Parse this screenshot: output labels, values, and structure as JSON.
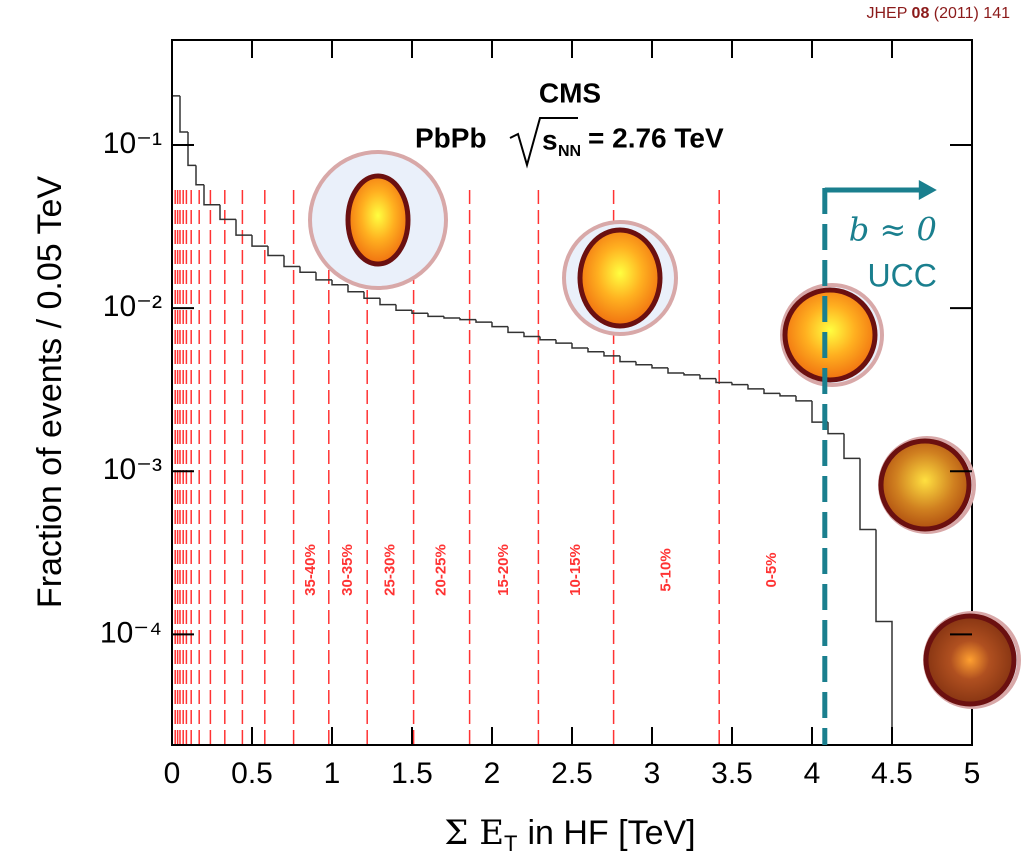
{
  "chart_data": {
    "type": "histogram",
    "citation": {
      "journal": "JHEP",
      "volume": "08",
      "rest": "(2011) 141"
    },
    "title": "CMS",
    "subtitle": {
      "system": "PbPb",
      "symbol": "s",
      "subscript": "NN",
      "rest": "= 2.76 TeV"
    },
    "xlabel": {
      "main": "Σ E",
      "subscript": "T",
      "rest": "in HF [TeV]"
    },
    "ylabel": "Fraction of events / 0.05 TeV",
    "bins": [
      0,
      0.05,
      0.1,
      0.15,
      0.2,
      0.3,
      0.4,
      0.5,
      0.6,
      0.7,
      0.8,
      0.9,
      1.0,
      1.1,
      1.2,
      1.3,
      1.4,
      1.5,
      1.6,
      1.7,
      1.8,
      1.9,
      2.0,
      2.1,
      2.2,
      2.3,
      2.4,
      2.5,
      2.6,
      2.7,
      2.8,
      2.9,
      3.0,
      3.1,
      3.2,
      3.3,
      3.4,
      3.5,
      3.6,
      3.7,
      3.8,
      3.9,
      4.0,
      4.1,
      4.2,
      4.3,
      4.4,
      4.5
    ],
    "counts": [
      0.2,
      0.12,
      0.075,
      0.057,
      0.043,
      0.035,
      0.028,
      0.024,
      0.021,
      0.018,
      0.0166,
      0.0149,
      0.0139,
      0.0126,
      0.0115,
      0.0105,
      0.0097,
      0.0093,
      0.0089,
      0.0087,
      0.0085,
      0.0082,
      0.0077,
      0.0071,
      0.0067,
      0.0064,
      0.0061,
      0.0057,
      0.0054,
      0.0051,
      0.0047,
      0.0045,
      0.0043,
      0.004,
      0.0039,
      0.0037,
      0.0035,
      0.0034,
      0.0032,
      0.003,
      0.0029,
      0.0027,
      0.002,
      0.0017,
      0.0012,
      0.00044,
      0.00012
    ],
    "color": "#333333",
    "xlim": [
      0,
      5
    ],
    "xticks": [
      0,
      0.5,
      1,
      1.5,
      2,
      2.5,
      3,
      3.5,
      4,
      4.5,
      5
    ],
    "ylim": [
      2.1e-05,
      0.44
    ],
    "log_y": true,
    "yticks": [
      {
        "value": 0.0001,
        "label": "10⁻⁴"
      },
      {
        "value": 0.001,
        "label": "10⁻³"
      },
      {
        "value": 0.01,
        "label": "10⁻²"
      },
      {
        "value": 0.1,
        "label": "10⁻¹"
      }
    ],
    "centrality_boundaries": [
      0.02,
      0.035,
      0.05,
      0.07,
      0.09,
      0.12,
      0.17,
      0.24,
      0.33,
      0.44,
      0.58,
      0.76,
      0.98,
      1.22,
      1.51,
      1.86,
      2.29,
      2.76,
      3.42
    ],
    "centrality_labels": [
      "35-40%",
      "30-35%",
      "25-30%",
      "20-25%",
      "15-20%",
      "10-15%",
      "5-10%",
      "0-5%"
    ],
    "boundary_color": "#ff3333",
    "ucc": {
      "x": 4.08,
      "impact": "b ≈ 0",
      "label": "UCC",
      "color": "#1a7f8e"
    }
  }
}
